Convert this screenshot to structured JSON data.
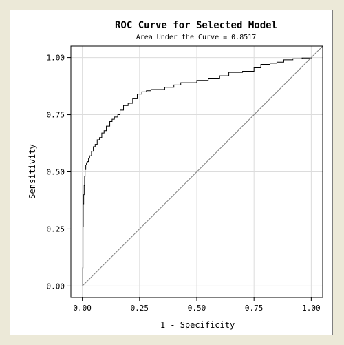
{
  "chart_data": {
    "type": "line",
    "title": "ROC Curve for Selected Model",
    "subtitle": "Area Under the Curve = 0.8517",
    "xlabel": "1 - Specificity",
    "ylabel": "Sensitivity",
    "xlim": [
      -0.05,
      1.05
    ],
    "ylim": [
      -0.05,
      1.05
    ],
    "xticks": [
      "0.00",
      "0.25",
      "0.50",
      "0.75",
      "1.00"
    ],
    "yticks": [
      "0.00",
      "0.25",
      "0.50",
      "0.75",
      "1.00"
    ],
    "xtick_values": [
      0,
      0.25,
      0.5,
      0.75,
      1
    ],
    "ytick_values": [
      0,
      0.25,
      0.5,
      0.75,
      1
    ],
    "grid": true,
    "series": [
      {
        "style": "step",
        "color": "#000000",
        "x": [
          0,
          0.002,
          0.003,
          0.004,
          0.006,
          0.008,
          0.01,
          0.012,
          0.015,
          0.018,
          0.022,
          0.027,
          0.032,
          0.04,
          0.048,
          0.056,
          0.065,
          0.075,
          0.085,
          0.095,
          0.105,
          0.12,
          0.13,
          0.14,
          0.155,
          0.165,
          0.18,
          0.2,
          0.22,
          0.24,
          0.26,
          0.28,
          0.3,
          0.33,
          0.36,
          0.4,
          0.43,
          0.46,
          0.5,
          0.55,
          0.6,
          0.64,
          0.7,
          0.75,
          0.78,
          0.82,
          0.85,
          0.88,
          0.92,
          0.96,
          1.0
        ],
        "y": [
          0,
          0.08,
          0.26,
          0.36,
          0.4,
          0.44,
          0.48,
          0.51,
          0.53,
          0.54,
          0.545,
          0.56,
          0.57,
          0.59,
          0.61,
          0.62,
          0.64,
          0.65,
          0.67,
          0.68,
          0.7,
          0.72,
          0.73,
          0.74,
          0.75,
          0.77,
          0.79,
          0.8,
          0.82,
          0.84,
          0.85,
          0.855,
          0.86,
          0.86,
          0.87,
          0.88,
          0.89,
          0.89,
          0.9,
          0.91,
          0.92,
          0.935,
          0.94,
          0.955,
          0.97,
          0.975,
          0.98,
          0.99,
          0.995,
          0.998,
          1.0
        ]
      },
      {
        "style": "line",
        "color": "#808080",
        "x": [
          0,
          1.05
        ],
        "y": [
          0,
          1.05
        ]
      }
    ]
  }
}
